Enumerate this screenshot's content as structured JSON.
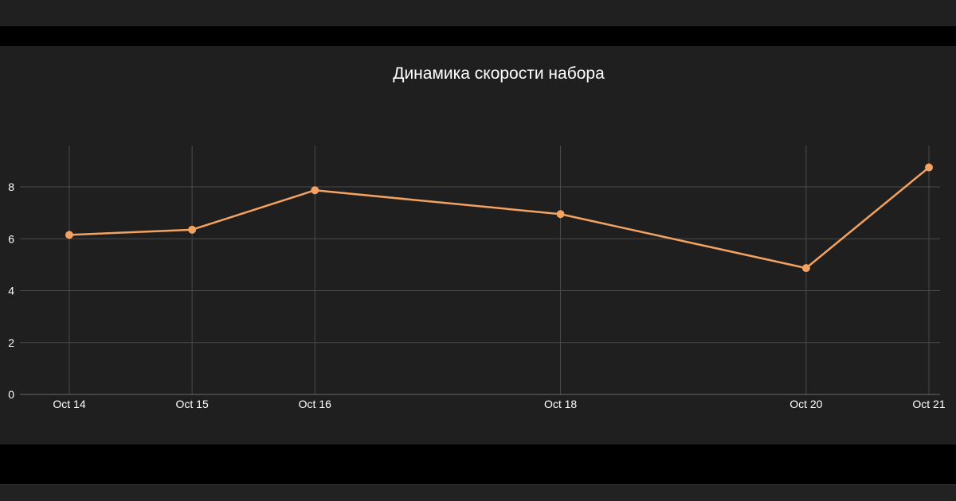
{
  "chart_data": {
    "type": "line",
    "title": "Динамика скорости набора",
    "xlabel": "",
    "ylabel": "",
    "x": [
      "2023-10-14",
      "2023-10-15",
      "2023-10-16",
      "2023-10-18",
      "2023-10-20",
      "2023-10-21"
    ],
    "x_tick_labels": [
      "Oct 14",
      "Oct 15",
      "Oct 16",
      "Oct 18",
      "Oct 20",
      "Oct 21"
    ],
    "series": [
      {
        "values": [
          6.15,
          6.35,
          7.87,
          6.95,
          4.87,
          8.75
        ],
        "color": "#f4a261"
      }
    ],
    "y_ticks": [
      0,
      2,
      4,
      6,
      8
    ],
    "ylim": [
      0,
      9.5
    ],
    "grid": true,
    "legend": false
  },
  "colors": {
    "background": "#1f1f1f",
    "grid": "#4a4a4a",
    "text": "#ffffff",
    "line": "#f4a261"
  }
}
